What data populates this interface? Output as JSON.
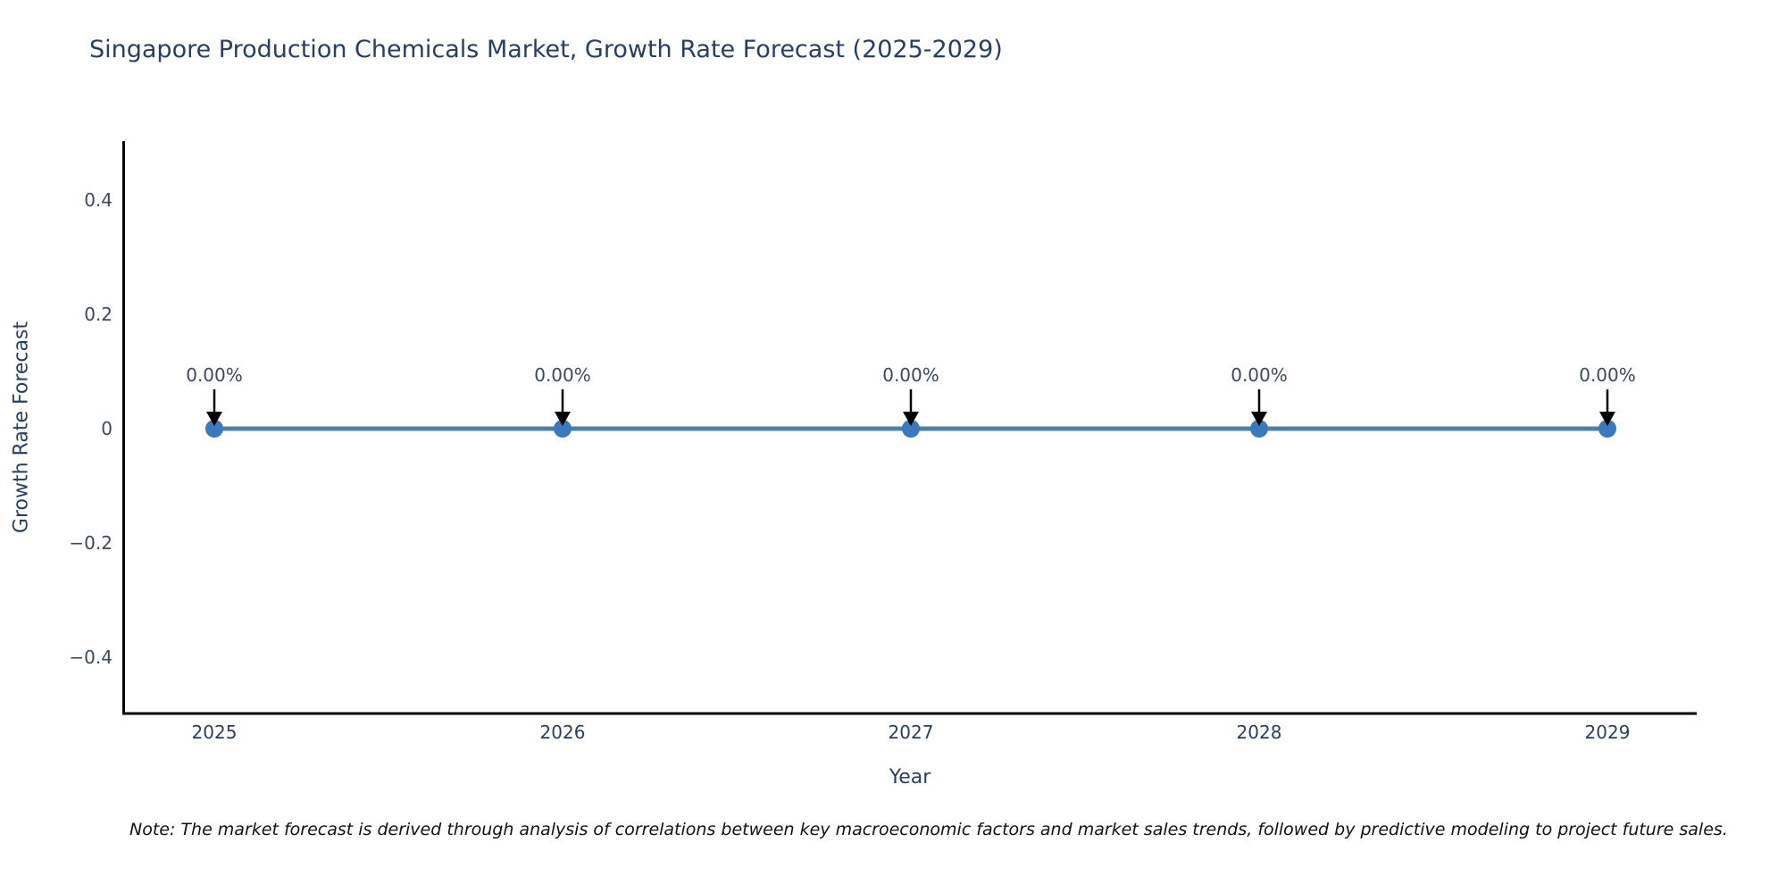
{
  "title": "Singapore Production Chemicals Market, Growth Rate Forecast (2025-2029)",
  "note": "Note: The market forecast is derived through analysis of correlations between key macroeconomic factors and market sales trends, followed by predictive modeling to project future sales.",
  "chart_data": {
    "type": "line",
    "title": "Singapore Production Chemicals Market, Growth Rate Forecast (2025-2029)",
    "xlabel": "Year",
    "ylabel": "Growth Rate Forecast",
    "categories": [
      "2025",
      "2026",
      "2027",
      "2028",
      "2029"
    ],
    "x": [
      2025,
      2026,
      2027,
      2028,
      2029
    ],
    "values": [
      0,
      0,
      0,
      0,
      0
    ],
    "point_labels": [
      "0.00%",
      "0.00%",
      "0.00%",
      "0.00%",
      "0.00%"
    ],
    "ylim": [
      -0.5,
      0.5
    ],
    "ytick_values": [
      0.4,
      0.2,
      0,
      -0.2,
      -0.4
    ],
    "ytick_labels": [
      "0.4",
      "0.2",
      "0",
      "−0.2",
      "−0.4"
    ],
    "grid": false,
    "legend": "none",
    "colors": {
      "line": "#4d80ab",
      "marker": "#3a79bb",
      "axis_line": "#000000",
      "arrow": "#000000",
      "title_text": "#2a3f5f",
      "tick_text": "#3c4a5c",
      "note_text": "#111111",
      "background": "#ffffff"
    }
  }
}
